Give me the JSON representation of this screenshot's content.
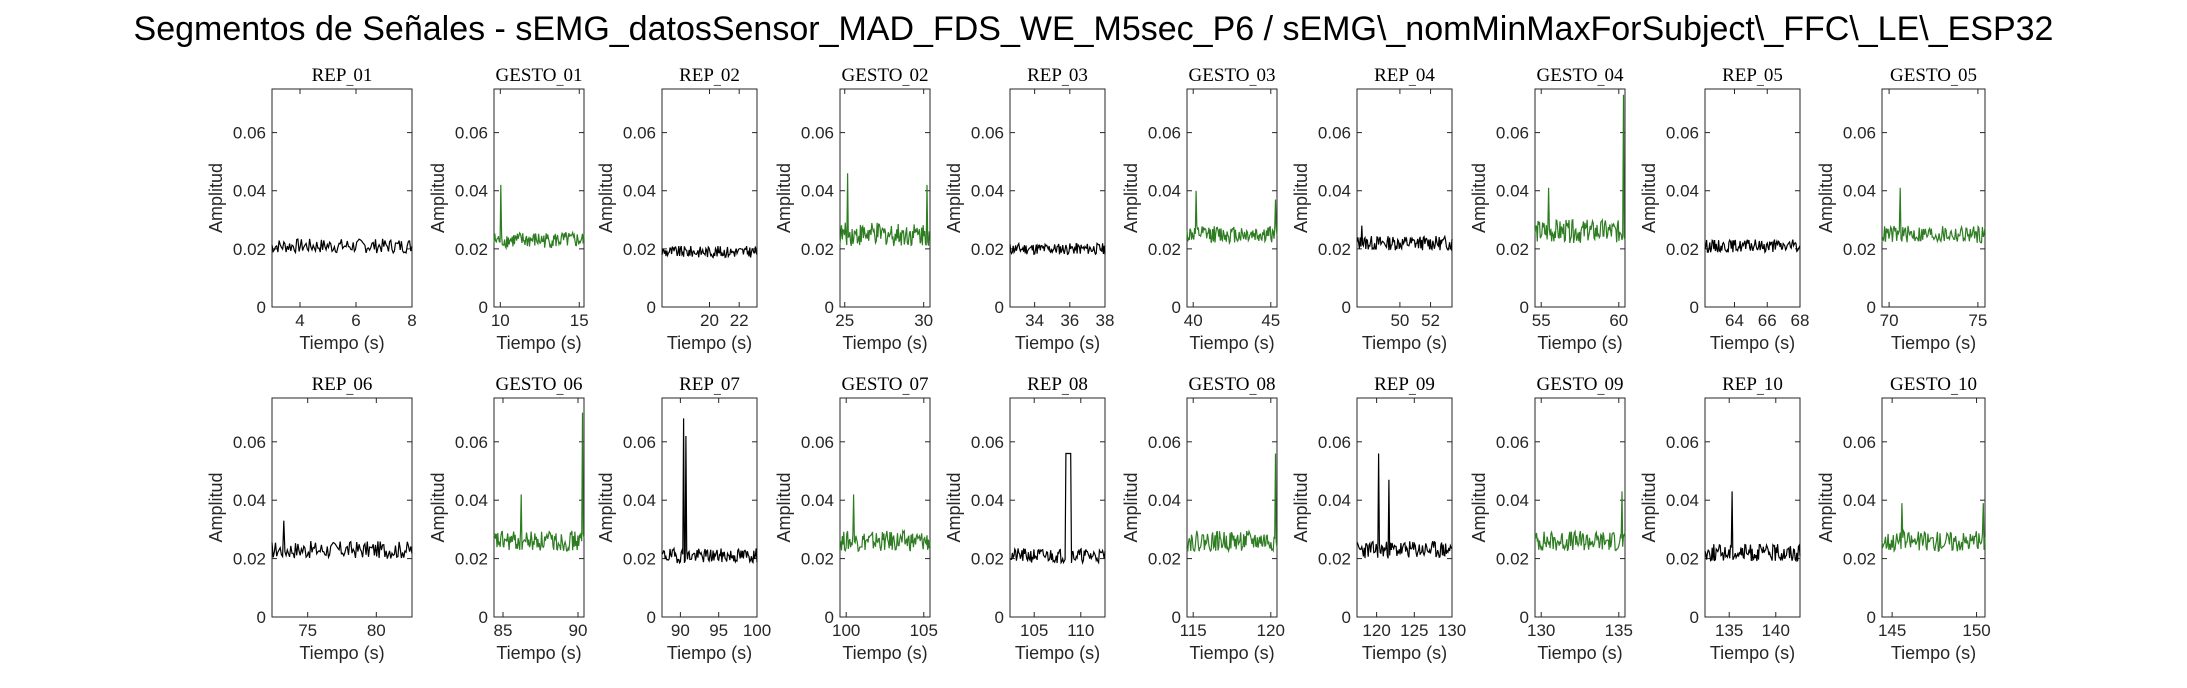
{
  "figure_title": "Segmentos de Señales - sEMG_datosSensor_MAD_FDS_WE_M5sec_P6 / sEMG\\_nomMinMaxForSubject\\_FFC\\_LE\\_ESP32",
  "colors": {
    "rep": "#000000",
    "gesto": "#2e7d22",
    "axis": "#262626"
  },
  "chart_data": [
    {
      "type": "line",
      "title": "REP_01",
      "kind": "rep",
      "xlim": [
        3,
        8
      ],
      "xticks": [
        4,
        6,
        8
      ],
      "ylim": [
        0,
        0.075
      ],
      "yticks": [
        0,
        0.02,
        0.04,
        0.06
      ],
      "ytick_labels": [
        "0",
        "0.02",
        "0.04",
        "0.06"
      ],
      "xlabel": "Tiempo (s)",
      "ylabel": "Amplitud",
      "base": 0.021,
      "noise": 0.0025,
      "spikes": []
    },
    {
      "type": "line",
      "title": "GESTO_01",
      "kind": "gesto",
      "xlim": [
        9.6,
        15.3
      ],
      "xticks": [
        10,
        15
      ],
      "ylim": [
        0,
        0.075
      ],
      "yticks": [
        0,
        0.02,
        0.04,
        0.06
      ],
      "ytick_labels": [
        "0",
        "0.02",
        "0.04",
        "0.06"
      ],
      "xlabel": "Tiempo (s)",
      "ylabel": "Amplitud",
      "base": 0.023,
      "noise": 0.0028,
      "spikes": [
        [
          10.05,
          0.042
        ]
      ]
    },
    {
      "type": "line",
      "title": "REP_02",
      "kind": "rep",
      "xlim": [
        16.8,
        23.2
      ],
      "xticks": [
        20,
        22
      ],
      "ylim": [
        0,
        0.075
      ],
      "yticks": [
        0,
        0.02,
        0.04,
        0.06
      ],
      "ytick_labels": [
        "0",
        "0.02",
        "0.04",
        "0.06"
      ],
      "xlabel": "Tiempo (s)",
      "ylabel": "Amplitud",
      "base": 0.019,
      "noise": 0.002,
      "spikes": []
    },
    {
      "type": "line",
      "title": "GESTO_02",
      "kind": "gesto",
      "xlim": [
        24.7,
        30.4
      ],
      "xticks": [
        25,
        30
      ],
      "ylim": [
        0,
        0.075
      ],
      "yticks": [
        0,
        0.02,
        0.04,
        0.06
      ],
      "ytick_labels": [
        "0",
        "0.02",
        "0.04",
        "0.06"
      ],
      "xlabel": "Tiempo (s)",
      "ylabel": "Amplitud",
      "base": 0.025,
      "noise": 0.004,
      "spikes": [
        [
          25.2,
          0.046
        ],
        [
          30.2,
          0.042
        ]
      ]
    },
    {
      "type": "line",
      "title": "REP_03",
      "kind": "rep",
      "xlim": [
        32.6,
        38
      ],
      "xticks": [
        34,
        36,
        38
      ],
      "ylim": [
        0,
        0.075
      ],
      "yticks": [
        0,
        0.02,
        0.04,
        0.06
      ],
      "ytick_labels": [
        "0",
        "0.02",
        "0.04",
        "0.06"
      ],
      "xlabel": "Tiempo (s)",
      "ylabel": "Amplitud",
      "base": 0.02,
      "noise": 0.002,
      "spikes": []
    },
    {
      "type": "line",
      "title": "GESTO_03",
      "kind": "gesto",
      "xlim": [
        39.6,
        45.4
      ],
      "xticks": [
        40,
        45
      ],
      "ylim": [
        0,
        0.075
      ],
      "yticks": [
        0,
        0.02,
        0.04,
        0.06
      ],
      "ytick_labels": [
        "0",
        "0.02",
        "0.04",
        "0.06"
      ],
      "xlabel": "Tiempo (s)",
      "ylabel": "Amplitud",
      "base": 0.025,
      "noise": 0.003,
      "spikes": [
        [
          40.2,
          0.04
        ],
        [
          45.3,
          0.037
        ]
      ]
    },
    {
      "type": "line",
      "title": "REP_04",
      "kind": "rep",
      "xlim": [
        47.2,
        53.4
      ],
      "xticks": [
        50,
        52
      ],
      "ylim": [
        0,
        0.075
      ],
      "yticks": [
        0,
        0.02,
        0.04,
        0.06
      ],
      "ytick_labels": [
        "0",
        "0.02",
        "0.04",
        "0.06"
      ],
      "xlabel": "Tiempo (s)",
      "ylabel": "Amplitud",
      "base": 0.022,
      "noise": 0.0025,
      "spikes": [
        [
          47.5,
          0.028
        ]
      ]
    },
    {
      "type": "line",
      "title": "GESTO_04",
      "kind": "gesto",
      "xlim": [
        54.6,
        60.4
      ],
      "xticks": [
        55,
        60
      ],
      "ylim": [
        0,
        0.075
      ],
      "yticks": [
        0,
        0.02,
        0.04,
        0.06
      ],
      "ytick_labels": [
        "0",
        "0.02",
        "0.04",
        "0.06"
      ],
      "xlabel": "Tiempo (s)",
      "ylabel": "Amplitud",
      "base": 0.026,
      "noise": 0.004,
      "spikes": [
        [
          55.5,
          0.041
        ],
        [
          60.3,
          0.073
        ]
      ]
    },
    {
      "type": "line",
      "title": "REP_05",
      "kind": "rep",
      "xlim": [
        62.2,
        68
      ],
      "xticks": [
        64,
        66,
        68
      ],
      "ylim": [
        0,
        0.075
      ],
      "yticks": [
        0,
        0.02,
        0.04,
        0.06
      ],
      "ytick_labels": [
        "0",
        "0.02",
        "0.04",
        "0.06"
      ],
      "xlabel": "Tiempo (s)",
      "ylabel": "Amplitud",
      "base": 0.021,
      "noise": 0.0022,
      "spikes": []
    },
    {
      "type": "line",
      "title": "GESTO_05",
      "kind": "gesto",
      "xlim": [
        69.6,
        75.4
      ],
      "xticks": [
        70,
        75
      ],
      "ylim": [
        0,
        0.075
      ],
      "yticks": [
        0,
        0.02,
        0.04,
        0.06
      ],
      "ytick_labels": [
        "0",
        "0.02",
        "0.04",
        "0.06"
      ],
      "xlabel": "Tiempo (s)",
      "ylabel": "Amplitud",
      "base": 0.025,
      "noise": 0.003,
      "spikes": [
        [
          70.6,
          0.041
        ]
      ]
    },
    {
      "type": "line",
      "title": "REP_06",
      "kind": "rep",
      "xlim": [
        72.4,
        82.6
      ],
      "xticks": [
        75,
        80
      ],
      "ylim": [
        0,
        0.075
      ],
      "yticks": [
        0,
        0.02,
        0.04,
        0.06
      ],
      "ytick_labels": [
        "0",
        "0.02",
        "0.04",
        "0.06"
      ],
      "xlabel": "Tiempo (s)",
      "ylabel": "Amplitud",
      "base": 0.023,
      "noise": 0.003,
      "spikes": [
        [
          73.3,
          0.033
        ]
      ]
    },
    {
      "type": "line",
      "title": "GESTO_06",
      "kind": "gesto",
      "xlim": [
        84.4,
        90.4
      ],
      "xticks": [
        85,
        90
      ],
      "ylim": [
        0,
        0.075
      ],
      "yticks": [
        0,
        0.02,
        0.04,
        0.06
      ],
      "ytick_labels": [
        "0",
        "0.02",
        "0.04",
        "0.06"
      ],
      "xlabel": "Tiempo (s)",
      "ylabel": "Amplitud",
      "base": 0.026,
      "noise": 0.0035,
      "spikes": [
        [
          86.2,
          0.042
        ],
        [
          90.3,
          0.07
        ]
      ]
    },
    {
      "type": "line",
      "title": "REP_07",
      "kind": "rep",
      "xlim": [
        87.6,
        100
      ],
      "xticks": [
        90,
        95,
        100
      ],
      "ylim": [
        0,
        0.075
      ],
      "yticks": [
        0,
        0.02,
        0.04,
        0.06
      ],
      "ytick_labels": [
        "0",
        "0.02",
        "0.04",
        "0.06"
      ],
      "xlabel": "Tiempo (s)",
      "ylabel": "Amplitud",
      "base": 0.021,
      "noise": 0.0025,
      "spikes": [
        [
          90.4,
          0.068
        ],
        [
          90.7,
          0.062
        ]
      ]
    },
    {
      "type": "line",
      "title": "GESTO_07",
      "kind": "gesto",
      "xlim": [
        99.6,
        105.4
      ],
      "xticks": [
        100,
        105
      ],
      "ylim": [
        0,
        0.075
      ],
      "yticks": [
        0,
        0.02,
        0.04,
        0.06
      ],
      "ytick_labels": [
        "0",
        "0.02",
        "0.04",
        "0.06"
      ],
      "xlabel": "Tiempo (s)",
      "ylabel": "Amplitud",
      "base": 0.026,
      "noise": 0.0035,
      "spikes": [
        [
          100.5,
          0.042
        ]
      ]
    },
    {
      "type": "line",
      "title": "REP_08",
      "kind": "rep",
      "xlim": [
        102.4,
        112.6
      ],
      "xticks": [
        105,
        110
      ],
      "ylim": [
        0,
        0.075
      ],
      "yticks": [
        0,
        0.02,
        0.04,
        0.06
      ],
      "ytick_labels": [
        "0",
        "0.02",
        "0.04",
        "0.06"
      ],
      "xlabel": "Tiempo (s)",
      "ylabel": "Amplitud",
      "base": 0.021,
      "noise": 0.0025,
      "spikes": []
    },
    {
      "type": "line",
      "title": "GESTO_08",
      "kind": "gesto",
      "xlim": [
        114.6,
        120.4
      ],
      "xticks": [
        115,
        120
      ],
      "ylim": [
        0,
        0.075
      ],
      "yticks": [
        0,
        0.02,
        0.04,
        0.06
      ],
      "ytick_labels": [
        "0",
        "0.02",
        "0.04",
        "0.06"
      ],
      "xlabel": "Tiempo (s)",
      "ylabel": "Amplitud",
      "base": 0.026,
      "noise": 0.0035,
      "spikes": [
        [
          120.3,
          0.056
        ]
      ]
    },
    {
      "type": "line",
      "title": "REP_09",
      "kind": "rep",
      "xlim": [
        117.4,
        130
      ],
      "xticks": [
        120,
        125,
        130
      ],
      "ylim": [
        0,
        0.075
      ],
      "yticks": [
        0,
        0.02,
        0.04,
        0.06
      ],
      "ytick_labels": [
        "0",
        "0.02",
        "0.04",
        "0.06"
      ],
      "xlabel": "Tiempo (s)",
      "ylabel": "Amplitud",
      "base": 0.023,
      "noise": 0.003,
      "spikes": [
        [
          120.3,
          0.056
        ],
        [
          121.6,
          0.047
        ]
      ]
    },
    {
      "type": "line",
      "title": "GESTO_09",
      "kind": "gesto",
      "xlim": [
        129.6,
        135.4
      ],
      "xticks": [
        130,
        135
      ],
      "ylim": [
        0,
        0.075
      ],
      "yticks": [
        0,
        0.02,
        0.04,
        0.06
      ],
      "ytick_labels": [
        "0",
        "0.02",
        "0.04",
        "0.06"
      ],
      "xlabel": "Tiempo (s)",
      "ylabel": "Amplitud",
      "base": 0.026,
      "noise": 0.0035,
      "spikes": [
        [
          135.2,
          0.043
        ]
      ]
    },
    {
      "type": "line",
      "title": "REP_10",
      "kind": "rep",
      "xlim": [
        132.4,
        142.6
      ],
      "xticks": [
        135,
        140
      ],
      "ylim": [
        0,
        0.075
      ],
      "yticks": [
        0,
        0.02,
        0.04,
        0.06
      ],
      "ytick_labels": [
        "0",
        "0.02",
        "0.04",
        "0.06"
      ],
      "xlabel": "Tiempo (s)",
      "ylabel": "Amplitud",
      "base": 0.022,
      "noise": 0.003,
      "spikes": [
        [
          135.3,
          0.043
        ]
      ]
    },
    {
      "type": "line",
      "title": "GESTO_10",
      "kind": "gesto",
      "xlim": [
        144.4,
        150.5
      ],
      "xticks": [
        145,
        150
      ],
      "ylim": [
        0,
        0.075
      ],
      "yticks": [
        0,
        0.02,
        0.04,
        0.06
      ],
      "ytick_labels": [
        "0",
        "0.02",
        "0.04",
        "0.06"
      ],
      "xlabel": "Tiempo (s)",
      "ylabel": "Amplitud",
      "base": 0.026,
      "noise": 0.0035,
      "spikes": [
        [
          145.6,
          0.039
        ],
        [
          150.4,
          0.039
        ]
      ]
    }
  ]
}
